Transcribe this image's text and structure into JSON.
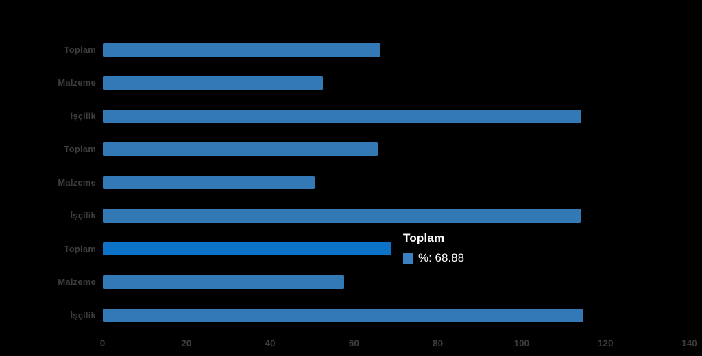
{
  "colors": {
    "background": "#000000",
    "bar": "#3279b5",
    "bar_highlight": "#0d73c8",
    "axis_label": "#3d3d3d",
    "tooltip_text": "#ffffff",
    "tooltip_swatch": "#3a80c0"
  },
  "chart_data": {
    "type": "bar",
    "orientation": "horizontal",
    "title": "",
    "xlabel": "",
    "ylabel": "",
    "xlim": [
      0,
      140
    ],
    "x_ticks": [
      0,
      20,
      40,
      60,
      80,
      100,
      120,
      140
    ],
    "grid": false,
    "legend_position": "none",
    "series_name": "%",
    "categories": [
      "Toplam",
      "Malzeme",
      "İşçilik",
      "Toplam",
      "Malzeme",
      "İşçilik",
      "Toplam",
      "Malzeme",
      "İşçilik"
    ],
    "values": [
      66.4,
      52.5,
      114.2,
      65.7,
      50.7,
      114.0,
      68.88,
      57.7,
      114.7
    ],
    "highlighted_index": 6,
    "groups": [
      {
        "rows": [
          {
            "label": "Toplam",
            "value": 66.4
          },
          {
            "label": "Malzeme",
            "value": 52.5
          },
          {
            "label": "İşçilik",
            "value": 114.2
          }
        ]
      },
      {
        "rows": [
          {
            "label": "Toplam",
            "value": 65.7
          },
          {
            "label": "Malzeme",
            "value": 50.7
          },
          {
            "label": "İşçilik",
            "value": 114.0
          }
        ]
      },
      {
        "rows": [
          {
            "label": "Toplam",
            "value": 68.88
          },
          {
            "label": "Malzeme",
            "value": 57.7
          },
          {
            "label": "İşçilik",
            "value": 114.7
          }
        ]
      }
    ]
  },
  "tooltip": {
    "title": "Toplam",
    "value_label": "%: 68.88"
  }
}
